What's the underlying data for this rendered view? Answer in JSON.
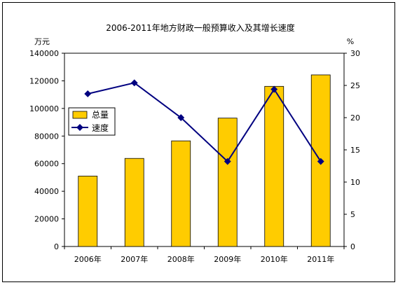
{
  "chart_data": {
    "type": "bar+line",
    "title": "2006-2011年地方财政一般预算收入及其增长速度",
    "ylabel_left": "万元",
    "ylabel_right": "%",
    "categories": [
      "2006年",
      "2007年",
      "2008年",
      "2009年",
      "2010年",
      "2011年"
    ],
    "y_left_lim": [
      0,
      140000
    ],
    "y_left_ticks": [
      "0",
      "20000",
      "40000",
      "60000",
      "80000",
      "100000",
      "120000",
      "140000"
    ],
    "y_right_lim": [
      0,
      30
    ],
    "y_right_ticks": [
      "0",
      "5",
      "10",
      "15",
      "20",
      "25",
      "30"
    ],
    "series": [
      {
        "name": "总量",
        "kind": "bar",
        "axis": "left",
        "color": "#ffcc00",
        "values": [
          51000,
          63800,
          76500,
          93000,
          116000,
          124300
        ]
      },
      {
        "name": "速度",
        "kind": "line",
        "axis": "right",
        "color": "#000080",
        "values": [
          23.7,
          25.4,
          20.0,
          13.2,
          24.4,
          13.2
        ]
      }
    ],
    "legend_position": "upper-left inside plot",
    "grid": false
  }
}
